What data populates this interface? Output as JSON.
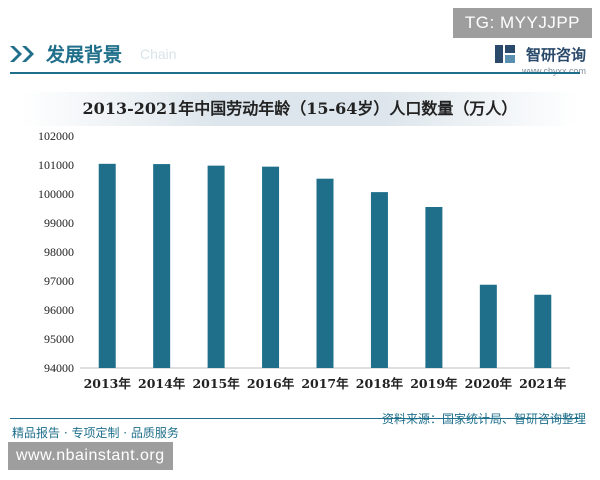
{
  "watermark_top": "TG: MYYJJPP",
  "watermark_bottom": "www.nbainstant.org",
  "header": {
    "title": "发展背景",
    "brand_name": "智研咨询",
    "brand_url": "www.chyxx.com",
    "ghost_text": "Chain"
  },
  "footer": {
    "left_text": "精品报告 · 专项定制 · 品质服务",
    "source_text": "资料来源：国家统计局、智研咨询整理"
  },
  "colors": {
    "accent": "#1f6f8b",
    "bar": "#1f6f8b"
  },
  "chart_data": {
    "type": "bar",
    "title": "2013-2021年中国劳动年龄（15-64岁）人口数量（万人）",
    "categories": [
      "2013年",
      "2014年",
      "2015年",
      "2016年",
      "2017年",
      "2018年",
      "2019年",
      "2020年",
      "2021年"
    ],
    "values": [
      101041,
      101032,
      100978,
      100943,
      100528,
      100065,
      99552,
      96871,
      96526
    ],
    "ylim": [
      94000,
      102000
    ],
    "yticks": [
      94000,
      95000,
      96000,
      97000,
      98000,
      99000,
      100000,
      101000,
      102000
    ],
    "xlabel": "",
    "ylabel": "",
    "grid": false,
    "legend": "none"
  }
}
